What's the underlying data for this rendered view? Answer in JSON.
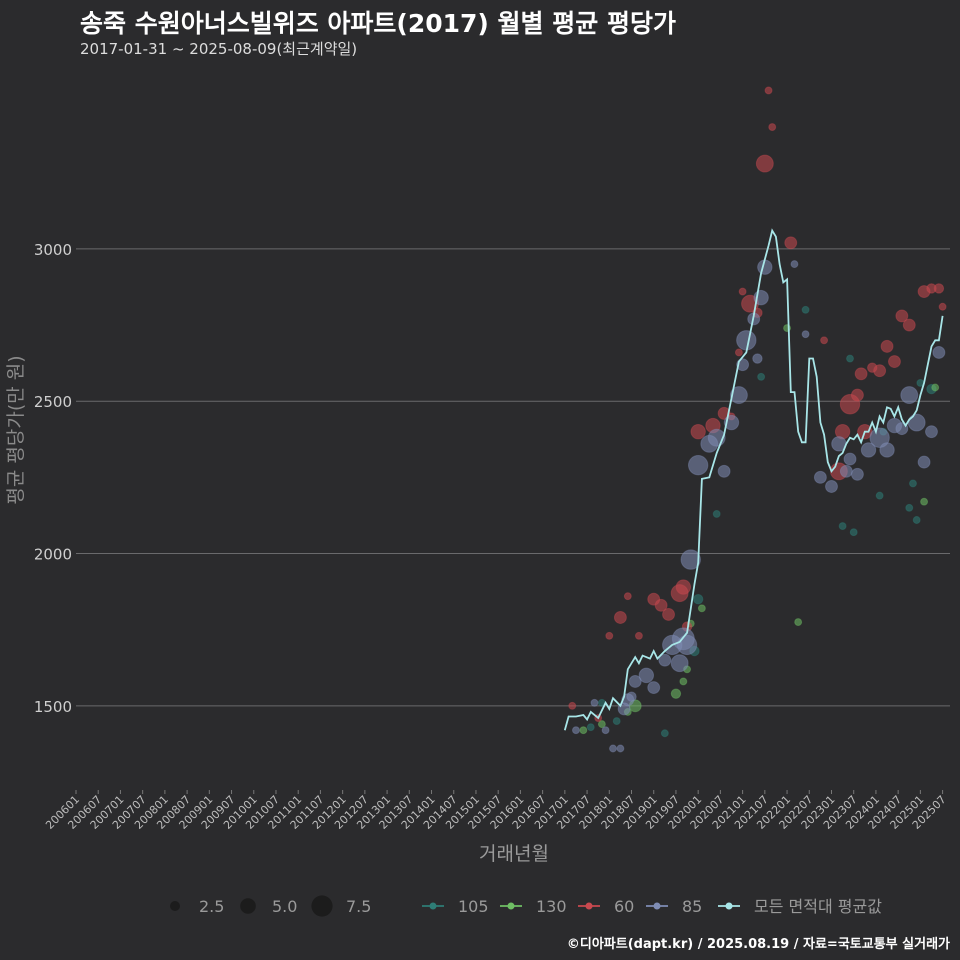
{
  "chart_data": {
    "type": "scatter",
    "title": "송죽 수원아너스빌위즈 아파트(2017) 월별 평균 평당가",
    "subtitle": "2017-01-31 ~ 2025-08-09(최근계약일)",
    "xlabel": "거래년월",
    "ylabel": "평균 평당가(만 원)",
    "caption": "©디아파트(dapt.kr) / 2025.08.19 / 자료=국토교통부 실거래가",
    "ylim": [
      1250,
      3620
    ],
    "y_ticks": [
      1500,
      2000,
      2500,
      3000
    ],
    "x_tick_labels": [
      "200601",
      "200607",
      "200701",
      "200707",
      "200801",
      "200807",
      "200901",
      "200907",
      "201001",
      "201007",
      "201101",
      "201107",
      "201201",
      "201207",
      "201301",
      "201307",
      "201401",
      "201407",
      "201501",
      "201507",
      "201601",
      "201607",
      "201701",
      "201707",
      "201801",
      "201807",
      "201901",
      "201907",
      "202001",
      "202007",
      "202101",
      "202107",
      "202201",
      "202207",
      "202301",
      "202307",
      "202401",
      "202407",
      "202501",
      "202507"
    ],
    "x_range_months": [
      "2006-01",
      "2025-09"
    ],
    "grid": "horizontal",
    "legend_position": "bottom",
    "size_legend": {
      "values": [
        2.5,
        5.0,
        7.5
      ],
      "labels": [
        "2.5",
        "5.0",
        "7.5"
      ]
    },
    "colors": {
      "105": "#2e7d76",
      "130": "#6fbf64",
      "60": "#c9494f",
      "85": "#7f8db5",
      "avg": "#a8e6e8"
    },
    "series": [
      {
        "name": "105",
        "key": "105",
        "points": [
          [
            "2017-08",
            1430,
            1
          ],
          [
            "2017-11",
            1510,
            1
          ],
          [
            "2018-03",
            1450,
            1
          ],
          [
            "2019-04",
            1410,
            1
          ],
          [
            "2019-12",
            1680,
            2
          ],
          [
            "2020-01",
            1850,
            2
          ],
          [
            "2020-06",
            2130,
            1
          ],
          [
            "2021-06",
            2580,
            1
          ],
          [
            "2022-06",
            2800,
            1
          ],
          [
            "2023-04",
            2090,
            1
          ],
          [
            "2023-06",
            2640,
            1
          ],
          [
            "2023-07",
            2070,
            1
          ],
          [
            "2024-02",
            2190,
            1
          ],
          [
            "2024-03",
            2400,
            1
          ],
          [
            "2024-10",
            2150,
            1
          ],
          [
            "2024-11",
            2230,
            1
          ],
          [
            "2024-12",
            2110,
            1
          ],
          [
            "2025-01",
            2560,
            1
          ],
          [
            "2025-04",
            2540,
            2
          ]
        ]
      },
      {
        "name": "130",
        "key": "130",
        "points": [
          [
            "2017-06",
            1420,
            1
          ],
          [
            "2017-11",
            1440,
            1
          ],
          [
            "2018-06",
            1480,
            1
          ],
          [
            "2018-08",
            1500,
            3
          ],
          [
            "2019-07",
            1540,
            2
          ],
          [
            "2019-09",
            1580,
            1
          ],
          [
            "2019-10",
            1620,
            1
          ],
          [
            "2019-11",
            1770,
            1
          ],
          [
            "2020-02",
            1820,
            1
          ],
          [
            "2022-01",
            2740,
            1
          ],
          [
            "2022-04",
            1775,
            1
          ],
          [
            "2025-02",
            2170,
            1
          ],
          [
            "2025-05",
            2545,
            1
          ]
        ]
      },
      {
        "name": "60",
        "key": "60",
        "points": [
          [
            "2017-03",
            1500,
            1
          ],
          [
            "2017-10",
            1460,
            1
          ],
          [
            "2018-01",
            1730,
            1
          ],
          [
            "2018-04",
            1790,
            3
          ],
          [
            "2018-06",
            1860,
            1
          ],
          [
            "2018-09",
            1730,
            1
          ],
          [
            "2019-01",
            1850,
            3
          ],
          [
            "2019-03",
            1830,
            3
          ],
          [
            "2019-05",
            1800,
            3
          ],
          [
            "2019-08",
            1870,
            5
          ],
          [
            "2019-09",
            1890,
            4
          ],
          [
            "2019-10",
            1760,
            2
          ],
          [
            "2020-01",
            2400,
            4
          ],
          [
            "2020-05",
            2420,
            4
          ],
          [
            "2020-08",
            2460,
            3
          ],
          [
            "2020-10",
            2450,
            1
          ],
          [
            "2020-12",
            2660,
            1
          ],
          [
            "2021-01",
            2860,
            1
          ],
          [
            "2021-03",
            2820,
            5
          ],
          [
            "2021-05",
            2790,
            2
          ],
          [
            "2021-07",
            3280,
            5
          ],
          [
            "2021-08",
            3520,
            1
          ],
          [
            "2021-09",
            3400,
            1
          ],
          [
            "2022-02",
            3020,
            3
          ],
          [
            "2022-11",
            2700,
            1
          ],
          [
            "2023-03",
            2270,
            5
          ],
          [
            "2023-04",
            2400,
            4
          ],
          [
            "2023-06",
            2490,
            6
          ],
          [
            "2023-08",
            2520,
            3
          ],
          [
            "2023-09",
            2590,
            3
          ],
          [
            "2023-10",
            2400,
            4
          ],
          [
            "2023-12",
            2610,
            2
          ],
          [
            "2024-02",
            2600,
            3
          ],
          [
            "2024-04",
            2680,
            3
          ],
          [
            "2024-06",
            2630,
            3
          ],
          [
            "2024-08",
            2780,
            3
          ],
          [
            "2024-10",
            2750,
            3
          ],
          [
            "2025-02",
            2860,
            3
          ],
          [
            "2025-04",
            2870,
            2
          ],
          [
            "2025-06",
            2870,
            2
          ],
          [
            "2025-07",
            2810,
            1
          ]
        ]
      },
      {
        "name": "85",
        "key": "85",
        "points": [
          [
            "2017-04",
            1420,
            1
          ],
          [
            "2017-09",
            1510,
            1
          ],
          [
            "2017-12",
            1420,
            1
          ],
          [
            "2018-02",
            1360,
            1
          ],
          [
            "2018-04",
            1360,
            1
          ],
          [
            "2018-05",
            1490,
            3
          ],
          [
            "2018-06",
            1520,
            3
          ],
          [
            "2018-07",
            1530,
            2
          ],
          [
            "2018-08",
            1580,
            3
          ],
          [
            "2018-11",
            1600,
            4
          ],
          [
            "2019-01",
            1560,
            3
          ],
          [
            "2019-04",
            1650,
            3
          ],
          [
            "2019-06",
            1700,
            6
          ],
          [
            "2019-08",
            1640,
            5
          ],
          [
            "2019-09",
            1720,
            7
          ],
          [
            "2019-10",
            1700,
            6
          ],
          [
            "2019-11",
            1980,
            6
          ],
          [
            "2020-01",
            2290,
            6
          ],
          [
            "2020-04",
            2360,
            5
          ],
          [
            "2020-06",
            2380,
            5
          ],
          [
            "2020-08",
            2270,
            3
          ],
          [
            "2020-10",
            2430,
            4
          ],
          [
            "2020-12",
            2520,
            5
          ],
          [
            "2021-01",
            2620,
            3
          ],
          [
            "2021-02",
            2700,
            6
          ],
          [
            "2021-04",
            2770,
            3
          ],
          [
            "2021-05",
            2640,
            2
          ],
          [
            "2021-06",
            2840,
            4
          ],
          [
            "2021-07",
            2940,
            4
          ],
          [
            "2022-03",
            2950,
            1
          ],
          [
            "2022-06",
            2720,
            1
          ],
          [
            "2022-10",
            2250,
            3
          ],
          [
            "2023-01",
            2220,
            3
          ],
          [
            "2023-03",
            2360,
            4
          ],
          [
            "2023-05",
            2270,
            3
          ],
          [
            "2023-06",
            2310,
            3
          ],
          [
            "2023-08",
            2260,
            3
          ],
          [
            "2023-11",
            2340,
            4
          ],
          [
            "2024-02",
            2380,
            6
          ],
          [
            "2024-04",
            2340,
            4
          ],
          [
            "2024-06",
            2420,
            4
          ],
          [
            "2024-08",
            2410,
            3
          ],
          [
            "2024-10",
            2520,
            5
          ],
          [
            "2024-12",
            2430,
            5
          ],
          [
            "2025-02",
            2300,
            3
          ],
          [
            "2025-04",
            2400,
            3
          ],
          [
            "2025-06",
            2660,
            3
          ]
        ]
      }
    ],
    "average_line": {
      "name": "모든 면적대 평균값",
      "key": "avg",
      "points": [
        [
          "2017-01",
          1420
        ],
        [
          "2017-02",
          1465
        ],
        [
          "2017-04",
          1465
        ],
        [
          "2017-06",
          1470
        ],
        [
          "2017-07",
          1455
        ],
        [
          "2017-08",
          1480
        ],
        [
          "2017-10",
          1460
        ],
        [
          "2017-12",
          1510
        ],
        [
          "2018-01",
          1490
        ],
        [
          "2018-02",
          1525
        ],
        [
          "2018-04",
          1500
        ],
        [
          "2018-05",
          1530
        ],
        [
          "2018-06",
          1620
        ],
        [
          "2018-07",
          1640
        ],
        [
          "2018-08",
          1660
        ],
        [
          "2018-09",
          1640
        ],
        [
          "2018-10",
          1665
        ],
        [
          "2018-12",
          1655
        ],
        [
          "2019-01",
          1680
        ],
        [
          "2019-02",
          1655
        ],
        [
          "2019-04",
          1680
        ],
        [
          "2019-06",
          1700
        ],
        [
          "2019-08",
          1710
        ],
        [
          "2019-10",
          1740
        ],
        [
          "2019-12",
          1900
        ],
        [
          "2020-01",
          1970
        ],
        [
          "2020-02",
          2245
        ],
        [
          "2020-04",
          2250
        ],
        [
          "2020-06",
          2330
        ],
        [
          "2020-08",
          2390
        ],
        [
          "2020-10",
          2510
        ],
        [
          "2020-12",
          2630
        ],
        [
          "2021-02",
          2660
        ],
        [
          "2021-04",
          2780
        ],
        [
          "2021-06",
          2920
        ],
        [
          "2021-08",
          3010
        ],
        [
          "2021-09",
          3060
        ],
        [
          "2021-10",
          3040
        ],
        [
          "2021-11",
          2950
        ],
        [
          "2021-12",
          2890
        ],
        [
          "2022-01",
          2900
        ],
        [
          "2022-02",
          2530
        ],
        [
          "2022-03",
          2530
        ],
        [
          "2022-04",
          2400
        ],
        [
          "2022-05",
          2365
        ],
        [
          "2022-06",
          2365
        ],
        [
          "2022-07",
          2640
        ],
        [
          "2022-08",
          2640
        ],
        [
          "2022-09",
          2580
        ],
        [
          "2022-10",
          2430
        ],
        [
          "2022-11",
          2390
        ],
        [
          "2022-12",
          2300
        ],
        [
          "2023-01",
          2270
        ],
        [
          "2023-02",
          2285
        ],
        [
          "2023-03",
          2320
        ],
        [
          "2023-04",
          2330
        ],
        [
          "2023-05",
          2360
        ],
        [
          "2023-06",
          2380
        ],
        [
          "2023-07",
          2375
        ],
        [
          "2023-08",
          2390
        ],
        [
          "2023-09",
          2365
        ],
        [
          "2023-10",
          2400
        ],
        [
          "2023-11",
          2400
        ],
        [
          "2023-12",
          2430
        ],
        [
          "2024-01",
          2400
        ],
        [
          "2024-02",
          2450
        ],
        [
          "2024-03",
          2430
        ],
        [
          "2024-04",
          2480
        ],
        [
          "2024-05",
          2475
        ],
        [
          "2024-06",
          2450
        ],
        [
          "2024-07",
          2480
        ],
        [
          "2024-08",
          2440
        ],
        [
          "2024-09",
          2420
        ],
        [
          "2024-10",
          2440
        ],
        [
          "2024-11",
          2450
        ],
        [
          "2024-12",
          2470
        ],
        [
          "2025-01",
          2520
        ],
        [
          "2025-02",
          2560
        ],
        [
          "2025-03",
          2620
        ],
        [
          "2025-04",
          2680
        ],
        [
          "2025-05",
          2700
        ],
        [
          "2025-06",
          2700
        ],
        [
          "2025-07",
          2780
        ]
      ]
    }
  }
}
